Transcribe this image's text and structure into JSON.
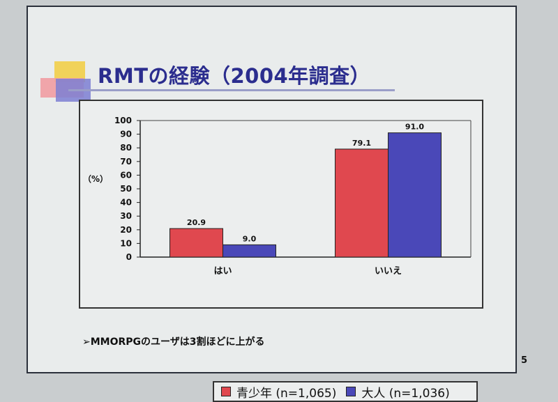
{
  "slide": {
    "title": "RMTの経験（2004年調査）",
    "bullet": "➢MMORPGのユーザは3割ほどに上がる",
    "page_number": "5"
  },
  "chart_data": {
    "type": "bar",
    "categories": [
      "はい",
      "いいえ"
    ],
    "series": [
      {
        "name": "青少年 (n=1,065)",
        "values": [
          20.9,
          79.1
        ],
        "color": "#e0484f"
      },
      {
        "name": "大人 (n=1,036)",
        "values": [
          9.0,
          91.0
        ],
        "color": "#4a48b8"
      }
    ],
    "value_labels": [
      [
        "20.9",
        "79.1"
      ],
      [
        "9.0",
        "91.0"
      ]
    ],
    "ylabel": "（%）",
    "ylim": [
      0,
      100
    ],
    "yticks": [
      0,
      10,
      20,
      30,
      40,
      50,
      60,
      70,
      80,
      90,
      100
    ],
    "grid": false,
    "legend_position": "bottom"
  }
}
